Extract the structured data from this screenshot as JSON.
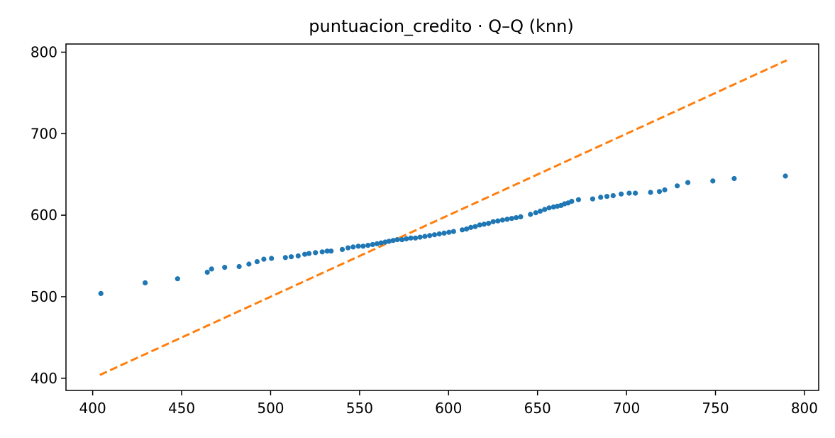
{
  "chart_data": {
    "type": "scatter",
    "title": "puntuacion_credito · Q–Q (knn)",
    "xlabel": "",
    "ylabel": "",
    "xlim": [
      385,
      808
    ],
    "ylim": [
      385,
      810
    ],
    "xticks": [
      400,
      450,
      500,
      550,
      600,
      650,
      700,
      750,
      800
    ],
    "yticks": [
      400,
      500,
      600,
      700,
      800
    ],
    "grid": false,
    "colors": {
      "points": "#1f77b4",
      "reference": "#ff7f0e"
    },
    "reference_line": {
      "style": "dashed",
      "x": [
        404,
        790
      ],
      "y": [
        404,
        790
      ]
    },
    "points": [
      [
        404.6,
        504
      ],
      [
        429.5,
        517
      ],
      [
        447.7,
        522
      ],
      [
        464.4,
        530
      ],
      [
        466.8,
        534
      ],
      [
        474.2,
        536
      ],
      [
        482.3,
        537
      ],
      [
        487.8,
        540
      ],
      [
        492.4,
        543
      ],
      [
        496.2,
        546
      ],
      [
        500.5,
        547
      ],
      [
        508.3,
        548
      ],
      [
        511.6,
        549
      ],
      [
        515.5,
        550
      ],
      [
        519.2,
        552
      ],
      [
        521.6,
        553
      ],
      [
        525.2,
        554
      ],
      [
        529.0,
        555
      ],
      [
        531.8,
        556
      ],
      [
        534.0,
        556
      ],
      [
        540.3,
        558
      ],
      [
        543.5,
        560
      ],
      [
        546.4,
        561
      ],
      [
        549.3,
        562
      ],
      [
        552.0,
        562
      ],
      [
        554.7,
        563
      ],
      [
        557.3,
        564
      ],
      [
        559.8,
        565
      ],
      [
        562.1,
        566
      ],
      [
        564.4,
        567
      ],
      [
        566.5,
        568
      ],
      [
        568.9,
        569
      ],
      [
        571.2,
        570
      ],
      [
        573.8,
        570
      ],
      [
        576.3,
        571
      ],
      [
        578.8,
        572
      ],
      [
        581.4,
        572
      ],
      [
        584.0,
        573
      ],
      [
        586.7,
        574
      ],
      [
        589.4,
        575
      ],
      [
        592.1,
        576
      ],
      [
        594.8,
        577
      ],
      [
        597.5,
        578
      ],
      [
        600.2,
        579
      ],
      [
        602.8,
        580
      ],
      [
        607.7,
        582
      ],
      [
        610.1,
        583
      ],
      [
        612.5,
        585
      ],
      [
        615.0,
        586
      ],
      [
        617.5,
        588
      ],
      [
        620.0,
        589
      ],
      [
        622.5,
        590
      ],
      [
        625.1,
        592
      ],
      [
        627.7,
        593
      ],
      [
        630.3,
        594
      ],
      [
        632.9,
        595
      ],
      [
        635.5,
        596
      ],
      [
        638.0,
        597
      ],
      [
        640.5,
        598
      ],
      [
        646.0,
        601
      ],
      [
        649.0,
        603
      ],
      [
        651.5,
        605
      ],
      [
        654.0,
        607
      ],
      [
        656.5,
        609
      ],
      [
        659.0,
        610
      ],
      [
        661.2,
        611
      ],
      [
        663.2,
        612
      ],
      [
        665.2,
        614
      ],
      [
        667.2,
        615
      ],
      [
        669.2,
        617
      ],
      [
        673.0,
        619
      ],
      [
        681.0,
        620
      ],
      [
        685.5,
        622
      ],
      [
        689.0,
        623
      ],
      [
        692.5,
        624
      ],
      [
        697.0,
        626
      ],
      [
        701.5,
        627
      ],
      [
        705.0,
        627
      ],
      [
        713.5,
        628
      ],
      [
        718.5,
        629
      ],
      [
        721.5,
        631
      ],
      [
        728.5,
        636
      ],
      [
        734.5,
        640
      ],
      [
        748.5,
        642
      ],
      [
        760.5,
        645
      ],
      [
        789.3,
        648
      ]
    ]
  }
}
